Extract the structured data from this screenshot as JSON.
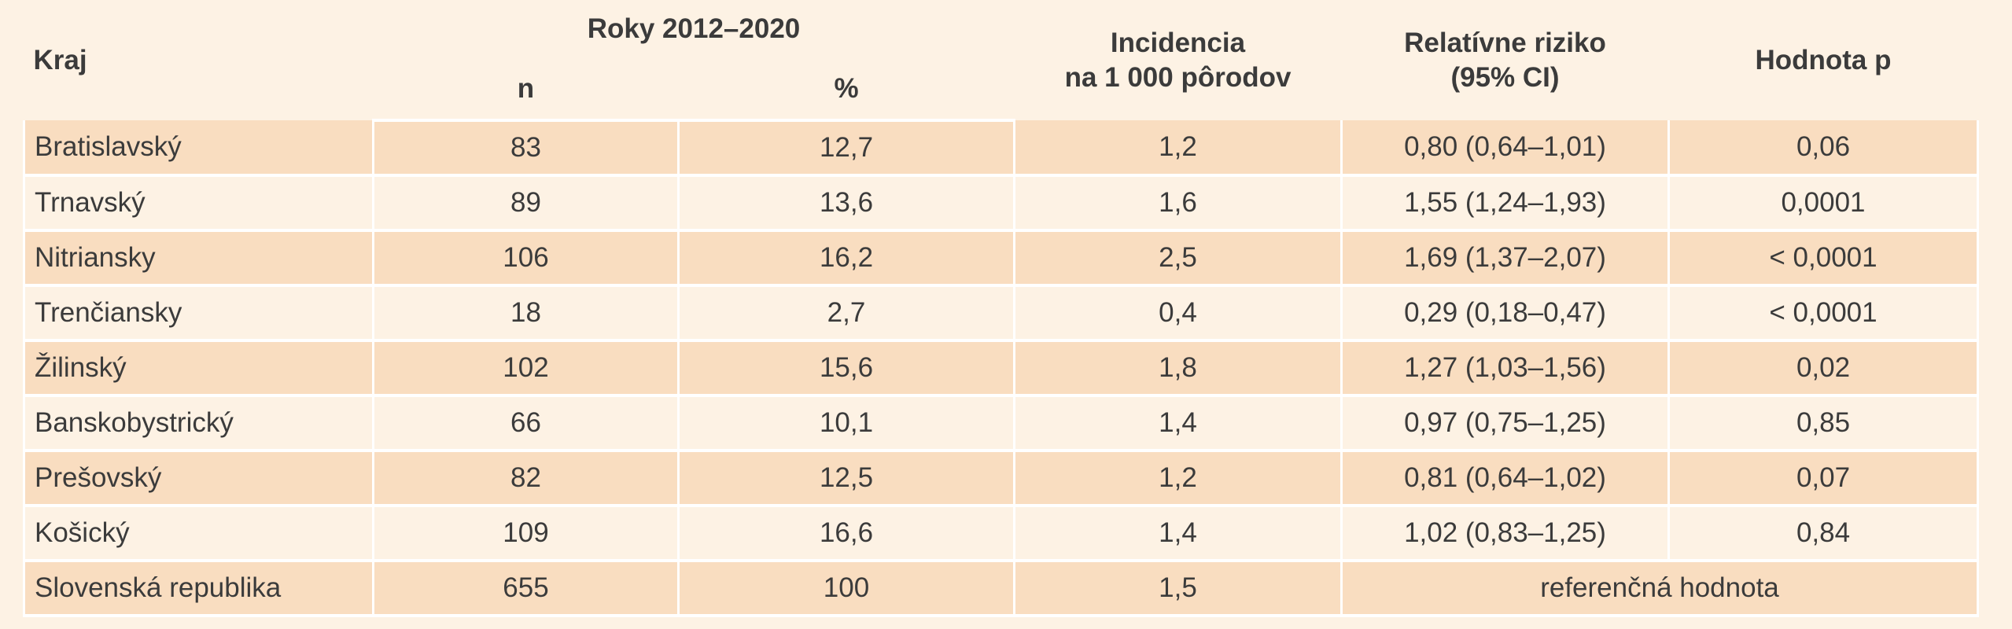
{
  "header": {
    "region": "Kraj",
    "period": "Roky 2012–2020",
    "n": "n",
    "percent": "%",
    "incidence": [
      "Incidencia",
      "na 1 000 pôrodov"
    ],
    "relative_risk": [
      "Relatívne riziko",
      "(95% CI)"
    ],
    "p_value": "Hodnota p"
  },
  "table": {
    "rows": [
      [
        "Bratislavský",
        "83",
        "12,7",
        "1,2",
        "0,80 (0,64–1,01)",
        "0,06"
      ],
      [
        "Trnavský",
        "89",
        "13,6",
        "1,6",
        "1,55 (1,24–1,93)",
        "0,0001"
      ],
      [
        "Nitriansky",
        "106",
        "16,2",
        "2,5",
        "1,69 (1,37–2,07)",
        "< 0,0001"
      ],
      [
        "Trenčiansky",
        "18",
        "2,7",
        "0,4",
        "0,29 (0,18–0,47)",
        "< 0,0001"
      ],
      [
        "Žilinský",
        "102",
        "15,6",
        "1,8",
        "1,27 (1,03–1,56)",
        "0,02"
      ],
      [
        "Banskobystrický",
        "66",
        "10,1",
        "1,4",
        "0,97 (0,75–1,25)",
        "0,85"
      ],
      [
        "Prešovský",
        "82",
        "12,5",
        "1,2",
        "0,81 (0,64–1,02)",
        "0,07"
      ],
      [
        "Košický",
        "109",
        "16,6",
        "1,4",
        "1,02 (0,83–1,25)",
        "0,84"
      ],
      [
        "Slovenská republika",
        "655",
        "100",
        "1,5",
        "referenčná hodnota"
      ]
    ]
  }
}
